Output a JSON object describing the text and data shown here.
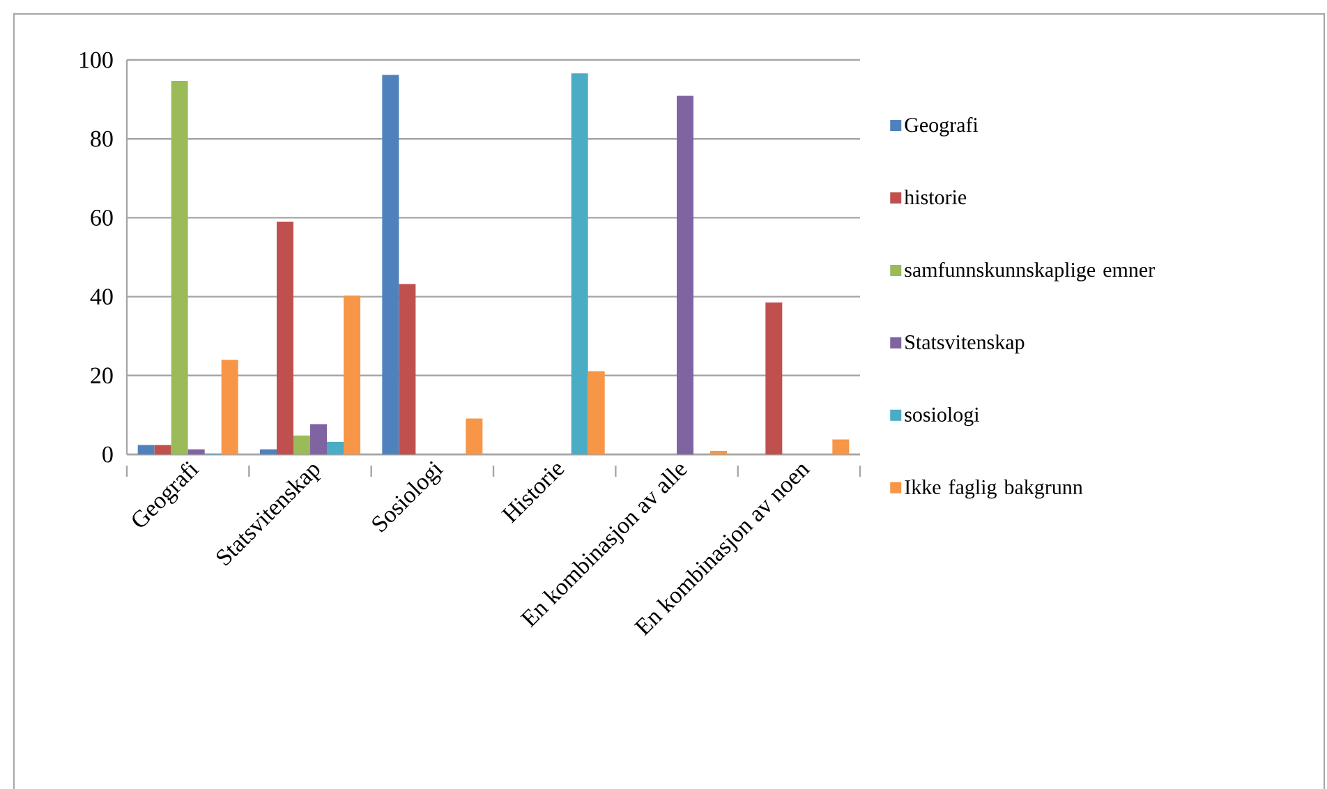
{
  "chart_data": {
    "type": "bar",
    "categories": [
      "Geografi",
      "Statsvitenskap",
      "Sosiologi",
      "Historie",
      "En kombinasjon av alle",
      "En kombinasjon av noen"
    ],
    "series": [
      {
        "name": "Geografi",
        "color": "#4f81bd",
        "values": [
          2.4,
          1.3,
          96.2,
          null,
          null,
          null
        ]
      },
      {
        "name": "historie",
        "color": "#c0504d",
        "values": [
          2.4,
          59,
          43.2,
          null,
          null,
          38.5
        ]
      },
      {
        "name": "samfunnskunnskaplige emner",
        "color": "#9bbb59",
        "values": [
          94.7,
          4.8,
          null,
          null,
          null,
          null
        ]
      },
      {
        "name": "Statsvitenskap",
        "color": "#8064a2",
        "values": [
          1.3,
          7.7,
          null,
          null,
          90.9,
          null
        ]
      },
      {
        "name": "sosiologi",
        "color": "#4bacc6",
        "values": [
          0.2,
          3.2,
          null,
          96.6,
          null,
          null
        ]
      },
      {
        "name": "Ikke faglig bakgrunn",
        "color": "#f79646",
        "values": [
          24,
          40.3,
          9.1,
          21.1,
          0.9,
          3.8
        ]
      }
    ],
    "ylim": [
      0,
      100
    ],
    "yticks": [
      0,
      20,
      40,
      60,
      80,
      100
    ],
    "grid": "y",
    "legend": "right"
  }
}
